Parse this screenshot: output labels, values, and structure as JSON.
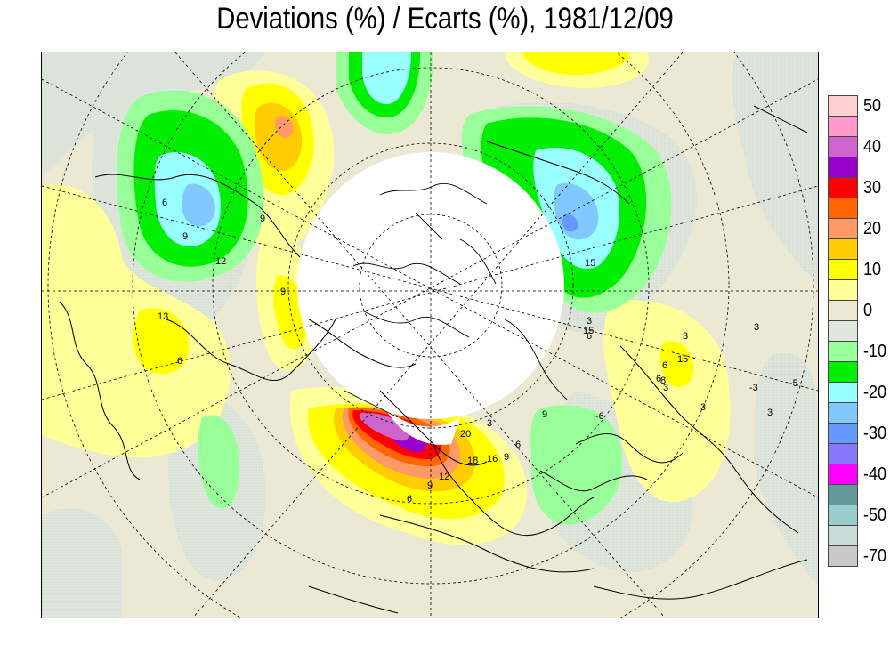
{
  "title": "Deviations (%) / Ecarts (%), 1981/12/09",
  "legend": {
    "colors": [
      "#ffd2d2",
      "#ff99cc",
      "#cc66cc",
      "#9900cc",
      "#ff0000",
      "#ff6600",
      "#ff9966",
      "#ffcc00",
      "#ffff00",
      "#ffff99",
      "#ebe9d3",
      "#dfe6dc",
      "#99ff99",
      "#00ee00",
      "#99ffff",
      "#80c8ff",
      "#6699ff",
      "#8877ff",
      "#ff00ff",
      "#669999",
      "#99cccc",
      "#c8dcd8",
      "#c8c8c8"
    ],
    "ticks": [
      "50",
      "40",
      "30",
      "20",
      "10",
      "0",
      "-10",
      "-20",
      "-30",
      "-40",
      "-50",
      "-70"
    ]
  },
  "contour_labels": [
    "6",
    "9",
    "12",
    "15",
    "9",
    "13",
    "6",
    "9",
    "6",
    "15",
    "6",
    "3",
    "6",
    "9",
    "15",
    "8",
    "3",
    "-3",
    "-5",
    "-6",
    "3",
    "3",
    "3",
    "3",
    "20",
    "16",
    "12",
    "18",
    "9",
    "9",
    "6",
    "6",
    "3"
  ]
}
